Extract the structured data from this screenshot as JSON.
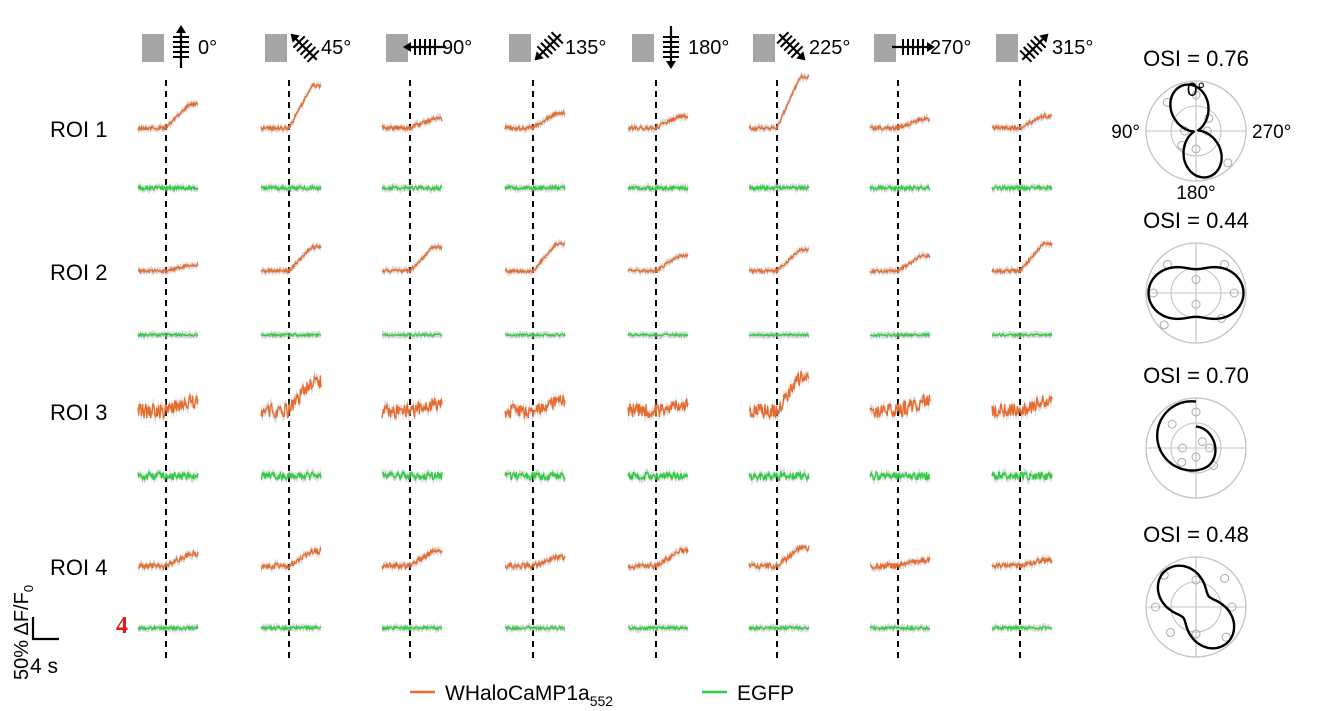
{
  "chart_data": {
    "type": "line",
    "directions": [
      {
        "label": "0°",
        "angle": 0
      },
      {
        "label": "45°",
        "angle": 45
      },
      {
        "label": "90°",
        "angle": 90
      },
      {
        "label": "135°",
        "angle": 135
      },
      {
        "label": "180°",
        "angle": 180
      },
      {
        "label": "225°",
        "angle": 225
      },
      {
        "label": "270°",
        "angle": 270
      },
      {
        "label": "315°",
        "angle": 315
      }
    ],
    "rois": [
      {
        "label": "ROI 1",
        "osi_text": "OSI = 0.76",
        "orange_response": [
          0.8,
          1.4,
          0.3,
          0.5,
          0.4,
          1.7,
          0.3,
          0.4
        ],
        "orange_noise": 0.25,
        "green_noise": 0.25,
        "polar": {
          "preferred_deg": 15,
          "bimodal": true,
          "baseline": 0.05,
          "show_angle_labels": true,
          "angle_labels": {
            "top": "0°",
            "left": "90°",
            "right": "270°",
            "bottom": "180°"
          },
          "points": [
            0.8,
            0.9,
            0.25,
            0.45,
            0.4,
            1.0,
            0.25,
            0.4
          ]
        }
      },
      {
        "label": "ROI 2",
        "osi_text": "OSI = 0.44",
        "orange_response": [
          0.2,
          0.8,
          0.8,
          0.9,
          0.5,
          0.7,
          0.5,
          0.9
        ],
        "orange_noise": 0.2,
        "green_noise": 0.15,
        "polar": {
          "preferred_deg": 90,
          "bimodal": true,
          "baseline": 0.5,
          "show_angle_labels": false,
          "points": [
            0.3,
            0.9,
            0.95,
            1.0,
            0.25,
            0.8,
            0.85,
            0.9
          ]
        }
      },
      {
        "label": "ROI 3",
        "osi_text": "OSI = 0.70",
        "orange_response": [
          0.3,
          1.0,
          0.2,
          0.3,
          0.2,
          1.1,
          0.3,
          0.3
        ],
        "orange_noise": 0.9,
        "green_noise": 0.5,
        "polar": {
          "preferred_deg": 20,
          "bimodal": false,
          "baseline": 0.4,
          "show_angle_labels": false,
          "points": [
            0.8,
            0.75,
            0.3,
            0.45,
            0.2,
            0.55,
            0.3,
            0.2
          ]
        }
      },
      {
        "label": "ROI 4",
        "osi_text": "OSI = 0.48",
        "orange_response": [
          0.4,
          0.5,
          0.5,
          0.3,
          0.5,
          0.6,
          0.2,
          0.2
        ],
        "orange_noise": 0.35,
        "green_noise": 0.2,
        "polar": {
          "preferred_deg": 40,
          "bimodal": true,
          "baseline": 0.35,
          "show_angle_labels": false,
          "points": [
            0.6,
            1.0,
            0.9,
            0.8,
            0.6,
            0.95,
            0.8,
            0.9
          ]
        }
      }
    ],
    "scale_bar": {
      "vertical_label": "50% ΔF/F",
      "vertical_sub": "0",
      "horizontal_label": "4 s"
    },
    "legend": [
      {
        "name": "WHaloCaMP1a",
        "sub": "552",
        "color": "#e86a2c"
      },
      {
        "name": "EGFP",
        "color": "#2ecc40"
      }
    ],
    "marker_glyph": "4",
    "colors": {
      "orange": "#e86a2c",
      "green": "#2ecc40",
      "gray_box": "#a6a6a6",
      "noise_gray": "#b8b8b8",
      "polar_grid": "#c4c4c4",
      "marker": "#e01b1b"
    }
  }
}
